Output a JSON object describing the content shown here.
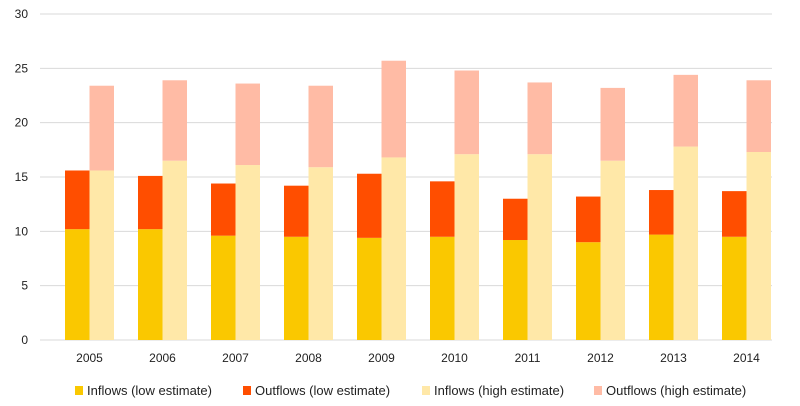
{
  "chart_data": {
    "type": "bar",
    "stacked": true,
    "title": "",
    "xlabel": "",
    "ylabel": "",
    "ylim": [
      0,
      30
    ],
    "yticks": [
      0,
      5,
      10,
      15,
      20,
      25,
      30
    ],
    "grid": true,
    "legend_position": "bottom",
    "categories": [
      "2005",
      "2006",
      "2007",
      "2008",
      "2009",
      "2010",
      "2011",
      "2012",
      "2013",
      "2014"
    ],
    "stacks": [
      {
        "name": "low estimate",
        "series": [
          {
            "name": "Inflows (low estimate)",
            "color": "#FAC800",
            "values": [
              10.2,
              10.2,
              9.6,
              9.5,
              9.4,
              9.5,
              9.2,
              9.0,
              9.7,
              9.5
            ]
          },
          {
            "name": "Outflows (low estimate)",
            "color": "#FF4E00",
            "values": [
              5.4,
              4.9,
              4.8,
              4.7,
              5.9,
              5.1,
              3.8,
              4.2,
              4.1,
              4.2
            ]
          }
        ]
      },
      {
        "name": "high estimate",
        "series": [
          {
            "name": "Inflows (high estimate)",
            "color": "#FFE8A8",
            "values": [
              15.6,
              16.5,
              16.1,
              15.9,
              16.8,
              17.1,
              17.1,
              16.5,
              17.8,
              17.3
            ]
          },
          {
            "name": "Outflows (high estimate)",
            "color": "#FFBBA5",
            "values": [
              7.8,
              7.4,
              7.5,
              7.5,
              8.9,
              7.7,
              6.6,
              6.7,
              6.6,
              6.6
            ]
          }
        ]
      }
    ],
    "legend": [
      {
        "label": "Inflows (low estimate)",
        "color": "#FAC800"
      },
      {
        "label": "Outflows (low estimate)",
        "color": "#FF4E00"
      },
      {
        "label": "Inflows (high estimate)",
        "color": "#FFE8A8"
      },
      {
        "label": "Outflows (high estimate)",
        "color": "#FFBBA5"
      }
    ],
    "gridline_color": "#D9D9D9"
  }
}
